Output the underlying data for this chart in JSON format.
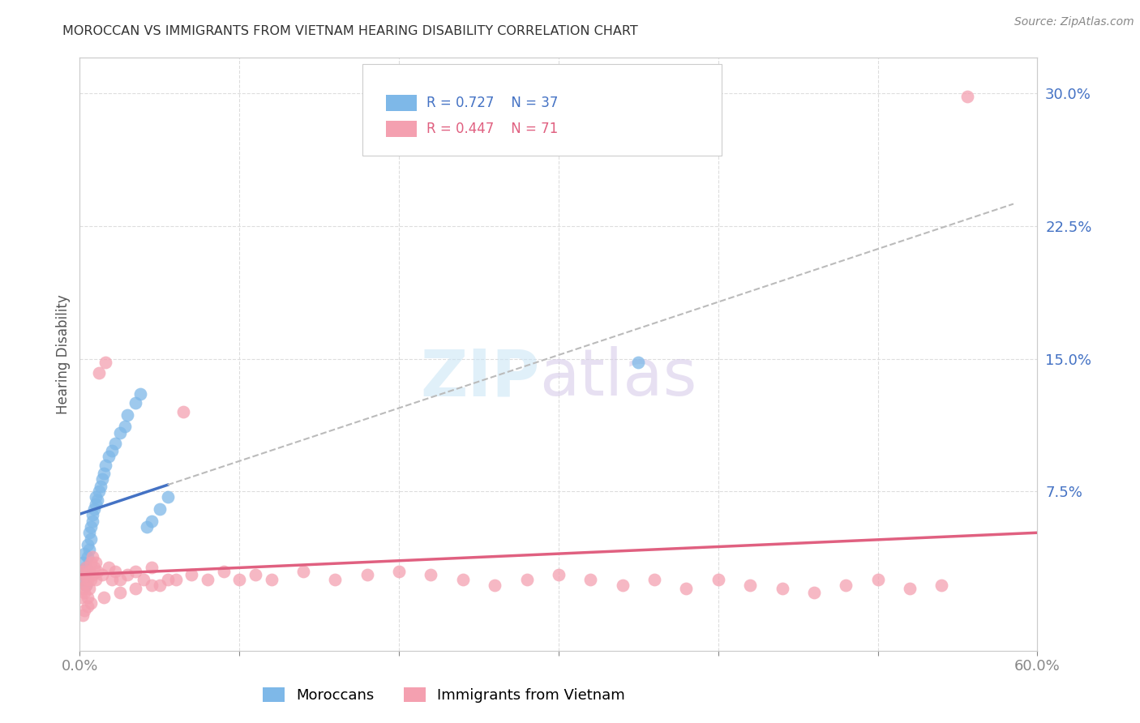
{
  "title": "MOROCCAN VS IMMIGRANTS FROM VIETNAM HEARING DISABILITY CORRELATION CHART",
  "source": "Source: ZipAtlas.com",
  "ylabel": "Hearing Disability",
  "xlim": [
    0.0,
    0.6
  ],
  "ylim": [
    -0.015,
    0.32
  ],
  "blue_color": "#7EB8E8",
  "pink_color": "#F4A0B0",
  "blue_line_color": "#4472C4",
  "pink_line_color": "#E06080",
  "dashed_line_color": "#BBBBBB",
  "title_color": "#333333",
  "axis_label_color": "#555555",
  "tick_color_blue": "#4472C4",
  "legend_R1": "R = 0.727",
  "legend_N1": "N = 37",
  "legend_R2": "R = 0.447",
  "legend_N2": "N = 71",
  "background_color": "#FFFFFF",
  "grid_color": "#DDDDDD",
  "moroccans_x": [
    0.001,
    0.002,
    0.002,
    0.003,
    0.003,
    0.004,
    0.004,
    0.005,
    0.005,
    0.006,
    0.006,
    0.007,
    0.007,
    0.008,
    0.008,
    0.009,
    0.01,
    0.01,
    0.011,
    0.012,
    0.013,
    0.014,
    0.015,
    0.016,
    0.018,
    0.02,
    0.022,
    0.025,
    0.028,
    0.03,
    0.035,
    0.038,
    0.042,
    0.045,
    0.05,
    0.055,
    0.35
  ],
  "moroccans_y": [
    0.03,
    0.035,
    0.025,
    0.04,
    0.028,
    0.032,
    0.022,
    0.038,
    0.045,
    0.042,
    0.052,
    0.048,
    0.055,
    0.058,
    0.062,
    0.065,
    0.068,
    0.072,
    0.07,
    0.075,
    0.078,
    0.082,
    0.085,
    0.09,
    0.095,
    0.098,
    0.102,
    0.108,
    0.112,
    0.118,
    0.125,
    0.13,
    0.055,
    0.058,
    0.065,
    0.072,
    0.148
  ],
  "vietnam_x": [
    0.001,
    0.001,
    0.002,
    0.002,
    0.003,
    0.003,
    0.004,
    0.004,
    0.005,
    0.005,
    0.006,
    0.006,
    0.007,
    0.007,
    0.008,
    0.008,
    0.009,
    0.01,
    0.01,
    0.011,
    0.012,
    0.014,
    0.016,
    0.018,
    0.02,
    0.022,
    0.025,
    0.03,
    0.035,
    0.04,
    0.045,
    0.05,
    0.06,
    0.07,
    0.08,
    0.09,
    0.1,
    0.11,
    0.12,
    0.14,
    0.16,
    0.18,
    0.2,
    0.22,
    0.24,
    0.26,
    0.28,
    0.3,
    0.32,
    0.34,
    0.36,
    0.38,
    0.4,
    0.42,
    0.44,
    0.46,
    0.48,
    0.5,
    0.52,
    0.54,
    0.002,
    0.003,
    0.005,
    0.007,
    0.015,
    0.025,
    0.035,
    0.045,
    0.055,
    0.065,
    0.556
  ],
  "vietnam_y": [
    0.025,
    0.015,
    0.02,
    0.03,
    0.018,
    0.028,
    0.022,
    0.032,
    0.015,
    0.025,
    0.03,
    0.02,
    0.025,
    0.035,
    0.028,
    0.038,
    0.032,
    0.025,
    0.035,
    0.03,
    0.142,
    0.028,
    0.148,
    0.032,
    0.025,
    0.03,
    0.025,
    0.028,
    0.03,
    0.025,
    0.032,
    0.022,
    0.025,
    0.028,
    0.025,
    0.03,
    0.025,
    0.028,
    0.025,
    0.03,
    0.025,
    0.028,
    0.03,
    0.028,
    0.025,
    0.022,
    0.025,
    0.028,
    0.025,
    0.022,
    0.025,
    0.02,
    0.025,
    0.022,
    0.02,
    0.018,
    0.022,
    0.025,
    0.02,
    0.022,
    0.005,
    0.008,
    0.01,
    0.012,
    0.015,
    0.018,
    0.02,
    0.022,
    0.025,
    0.12,
    0.298
  ]
}
